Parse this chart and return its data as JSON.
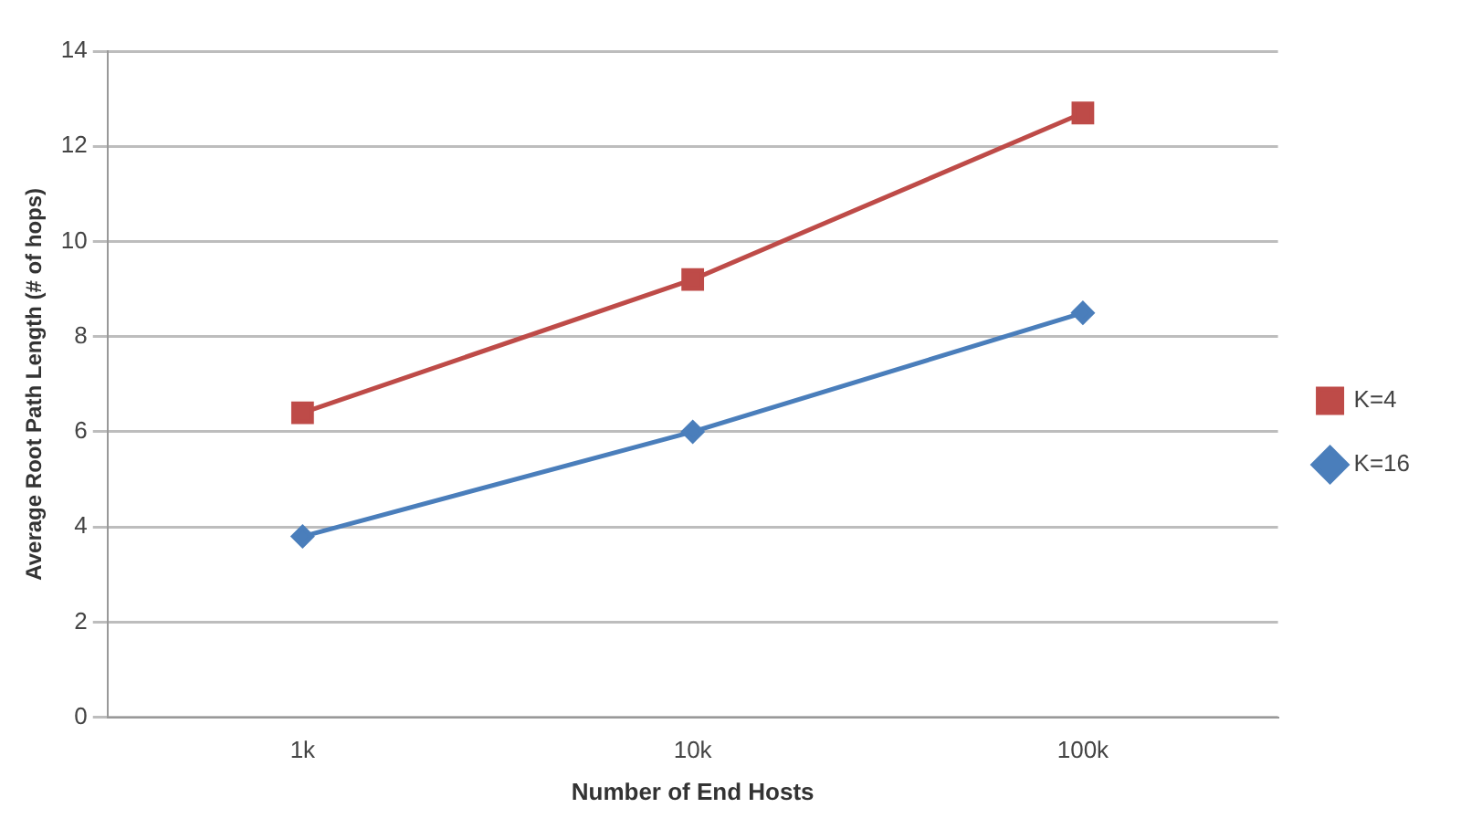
{
  "chart_data": {
    "type": "line",
    "xlabel": "Number of End Hosts",
    "ylabel": "Average Root Path Length (# of hops)",
    "categories": [
      "1k",
      "10k",
      "100k"
    ],
    "series": [
      {
        "name": "K=4",
        "color": "#be4b48",
        "values": [
          6.4,
          9.2,
          12.7
        ],
        "marker": "square"
      },
      {
        "name": "K=16",
        "color": "#4a7ebb",
        "values": [
          3.8,
          6.0,
          8.5
        ],
        "marker": "diamond"
      }
    ],
    "ylim": [
      0,
      14
    ],
    "yticks": [
      0,
      2,
      4,
      6,
      8,
      10,
      12,
      14
    ],
    "grid": "y",
    "legend": "right",
    "line_style": "solid"
  }
}
